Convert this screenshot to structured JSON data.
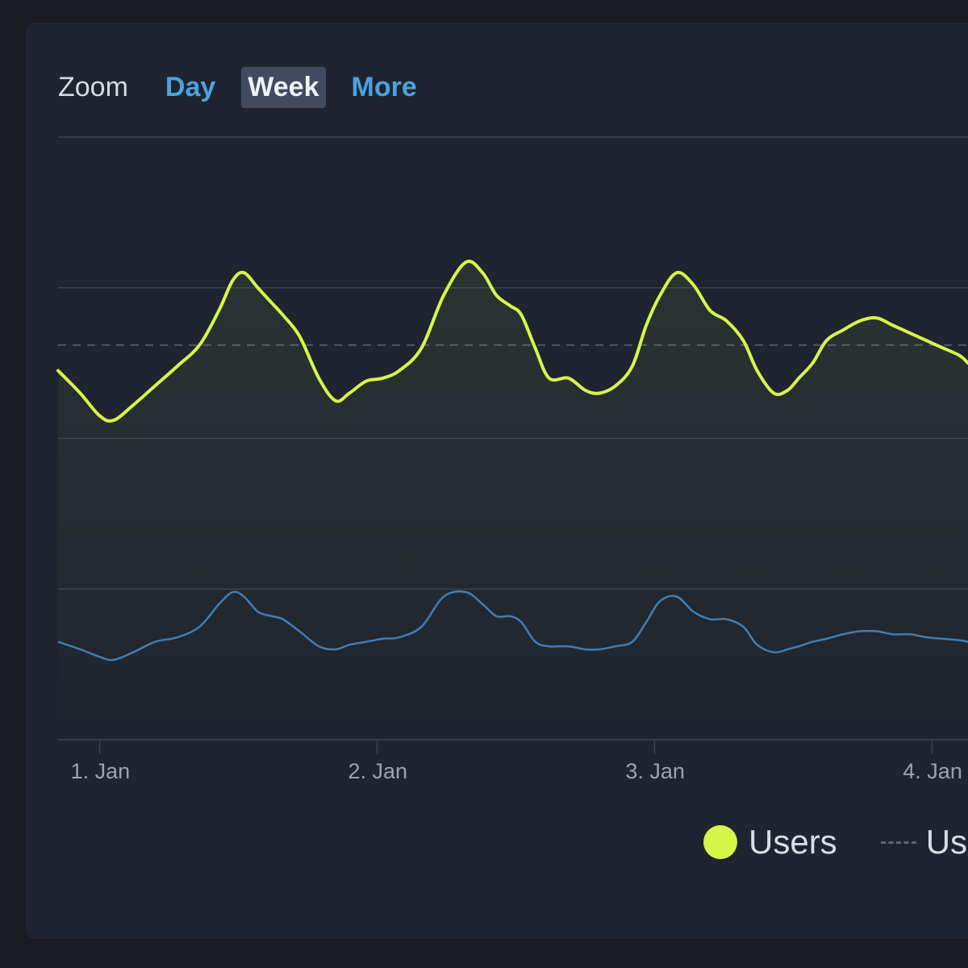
{
  "zoom": {
    "label": "Zoom",
    "options": [
      {
        "label": "Day",
        "active": false
      },
      {
        "label": "Week",
        "active": true
      },
      {
        "label": "More",
        "active": false
      }
    ]
  },
  "legend": {
    "users_label": "Users",
    "second_label": "Us"
  },
  "colors": {
    "users": "#d8f54a",
    "second_series": "#3f7bb5",
    "grid": "#3a4150",
    "dashed_average": "#505869",
    "axis_label": "#9aa3b2"
  },
  "chart_data": {
    "type": "line",
    "title": "",
    "xlabel": "",
    "ylabel": "",
    "x_ticks": [
      "1. Jan",
      "2. Jan",
      "3. Jan",
      "4. Jan"
    ],
    "x_unit": "days since 1. Jan",
    "xlim": [
      -0.15,
      3.13
    ],
    "ylim": [
      0,
      4
    ],
    "gridlines_y": [
      0,
      1,
      2,
      3,
      4
    ],
    "grid": true,
    "legend_position": "bottom",
    "series": [
      {
        "name": "Users",
        "style": "solid-filled",
        "x": [
          -0.15,
          -0.07,
          0.0,
          0.05,
          0.12,
          0.2,
          0.28,
          0.36,
          0.43,
          0.48,
          0.52,
          0.57,
          0.62,
          0.66,
          0.72,
          0.79,
          0.85,
          0.9,
          0.96,
          1.02,
          1.08,
          1.16,
          1.24,
          1.32,
          1.38,
          1.43,
          1.48,
          1.52,
          1.57,
          1.62,
          1.69,
          1.75,
          1.8,
          1.86,
          1.92,
          1.97,
          2.02,
          2.08,
          2.14,
          2.2,
          2.26,
          2.32,
          2.37,
          2.43,
          2.48,
          2.52,
          2.57,
          2.62,
          2.68,
          2.74,
          2.8,
          2.86,
          2.92,
          2.98,
          3.04,
          3.1,
          3.13
        ],
        "y": [
          2.45,
          2.3,
          2.15,
          2.12,
          2.22,
          2.35,
          2.48,
          2.62,
          2.85,
          3.05,
          3.1,
          3.0,
          2.9,
          2.82,
          2.68,
          2.4,
          2.25,
          2.3,
          2.38,
          2.4,
          2.45,
          2.6,
          2.95,
          3.17,
          3.1,
          2.95,
          2.88,
          2.82,
          2.6,
          2.4,
          2.4,
          2.32,
          2.3,
          2.35,
          2.48,
          2.75,
          2.95,
          3.1,
          3.02,
          2.85,
          2.78,
          2.65,
          2.45,
          2.3,
          2.32,
          2.4,
          2.5,
          2.65,
          2.72,
          2.78,
          2.8,
          2.75,
          2.7,
          2.65,
          2.6,
          2.55,
          2.5
        ]
      },
      {
        "name": "Us",
        "style": "dashed",
        "x": [
          -0.15,
          3.13
        ],
        "y": [
          2.62,
          2.62
        ]
      },
      {
        "name": "",
        "style": "solid-thin",
        "x": [
          -0.15,
          -0.07,
          0.0,
          0.05,
          0.12,
          0.2,
          0.28,
          0.36,
          0.43,
          0.48,
          0.52,
          0.57,
          0.62,
          0.66,
          0.72,
          0.79,
          0.85,
          0.9,
          0.96,
          1.02,
          1.08,
          1.16,
          1.24,
          1.32,
          1.38,
          1.43,
          1.48,
          1.52,
          1.57,
          1.62,
          1.69,
          1.75,
          1.8,
          1.86,
          1.92,
          1.97,
          2.02,
          2.08,
          2.14,
          2.2,
          2.26,
          2.32,
          2.37,
          2.43,
          2.48,
          2.52,
          2.57,
          2.62,
          2.68,
          2.74,
          2.8,
          2.86,
          2.92,
          2.98,
          3.04,
          3.1,
          3.13
        ],
        "y": [
          0.65,
          0.6,
          0.55,
          0.53,
          0.58,
          0.65,
          0.68,
          0.75,
          0.9,
          0.98,
          0.95,
          0.85,
          0.82,
          0.8,
          0.72,
          0.62,
          0.6,
          0.63,
          0.65,
          0.67,
          0.68,
          0.75,
          0.95,
          0.98,
          0.9,
          0.82,
          0.82,
          0.78,
          0.65,
          0.62,
          0.62,
          0.6,
          0.6,
          0.62,
          0.65,
          0.78,
          0.92,
          0.95,
          0.85,
          0.8,
          0.8,
          0.75,
          0.63,
          0.58,
          0.6,
          0.62,
          0.65,
          0.67,
          0.7,
          0.72,
          0.72,
          0.7,
          0.7,
          0.68,
          0.67,
          0.66,
          0.65
        ]
      }
    ]
  }
}
